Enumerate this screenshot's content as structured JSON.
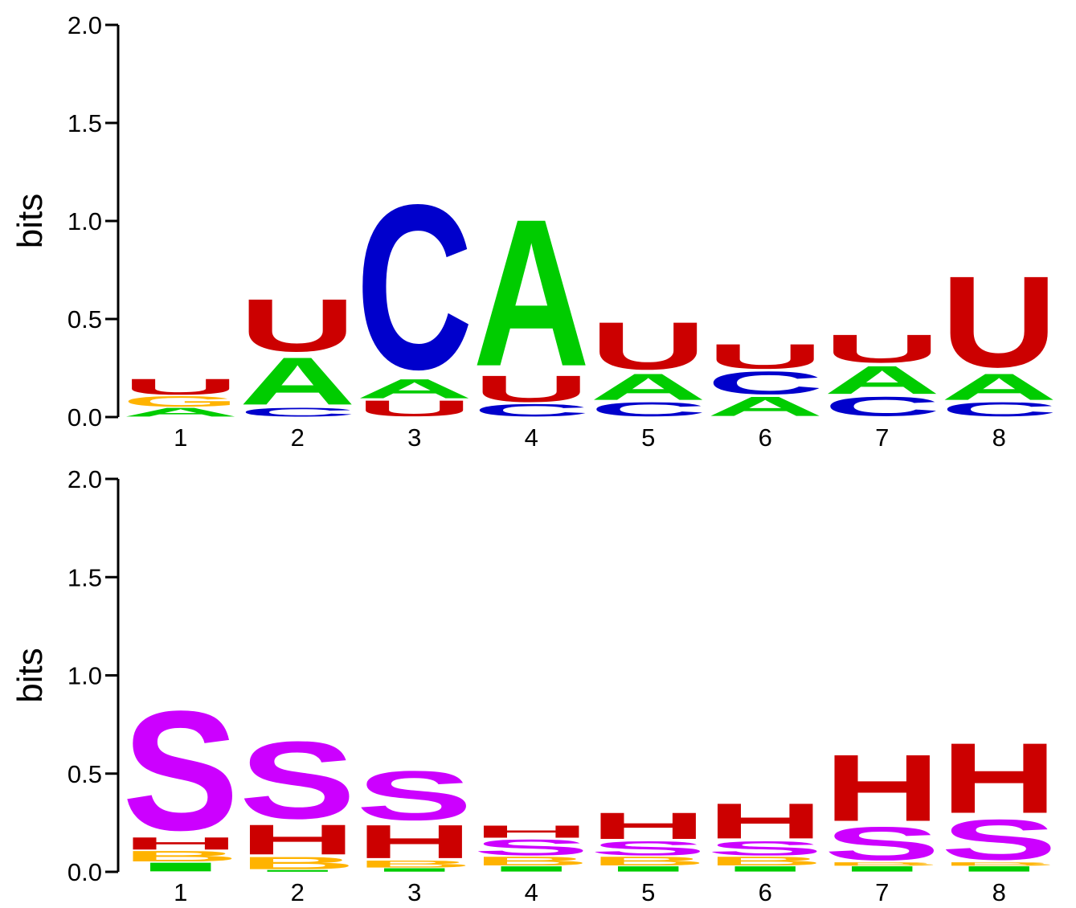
{
  "colors": {
    "A": "#00cc00",
    "C": "#0000cc",
    "G": "#ffb300",
    "U": "#cc0000",
    "H": "#cc0000",
    "S": "#cc00ff",
    "B": "#ffb300",
    "I": "#00cc00"
  },
  "chart_data": [
    {
      "type": "sequence-logo",
      "ylabel": "bits",
      "ylim": [
        0,
        2
      ],
      "yticks": [
        "0.0",
        "0.5",
        "1.0",
        "1.5",
        "2.0"
      ],
      "xticks": [
        "1",
        "2",
        "3",
        "4",
        "5",
        "6",
        "7",
        "8"
      ],
      "positions": [
        [
          {
            "letter": "A",
            "bits": 0.05
          },
          {
            "letter": "G",
            "bits": 0.06
          },
          {
            "letter": "U",
            "bits": 0.09
          }
        ],
        [
          {
            "letter": "C",
            "bits": 0.05
          },
          {
            "letter": "A",
            "bits": 0.27
          },
          {
            "letter": "U",
            "bits": 0.3
          }
        ],
        [
          {
            "letter": "U",
            "bits": 0.09
          },
          {
            "letter": "A",
            "bits": 0.11
          },
          {
            "letter": "C",
            "bits": 0.94
          }
        ],
        [
          {
            "letter": "C",
            "bits": 0.07
          },
          {
            "letter": "U",
            "bits": 0.15
          },
          {
            "letter": "A",
            "bits": 0.84
          }
        ],
        [
          {
            "letter": "C",
            "bits": 0.08
          },
          {
            "letter": "A",
            "bits": 0.15
          },
          {
            "letter": "U",
            "bits": 0.27
          }
        ],
        [
          {
            "letter": "A",
            "bits": 0.11
          },
          {
            "letter": "C",
            "bits": 0.13
          },
          {
            "letter": "U",
            "bits": 0.14
          }
        ],
        [
          {
            "letter": "C",
            "bits": 0.11
          },
          {
            "letter": "A",
            "bits": 0.16
          },
          {
            "letter": "U",
            "bits": 0.16
          }
        ],
        [
          {
            "letter": "C",
            "bits": 0.08
          },
          {
            "letter": "A",
            "bits": 0.15
          },
          {
            "letter": "U",
            "bits": 0.52
          }
        ]
      ]
    },
    {
      "type": "sequence-logo",
      "ylabel": "bits",
      "ylim": [
        0,
        2
      ],
      "yticks": [
        "0.0",
        "0.5",
        "1.0",
        "1.5",
        "2.0"
      ],
      "xticks": [
        "1",
        "2",
        "3",
        "4",
        "5",
        "6",
        "7",
        "8"
      ],
      "positions": [
        [
          {
            "letter": "I",
            "bits": 0.05
          },
          {
            "letter": "B",
            "bits": 0.06
          },
          {
            "letter": "H",
            "bits": 0.07
          },
          {
            "letter": "S",
            "bits": 0.68
          }
        ],
        [
          {
            "letter": "I",
            "bits": 0.01
          },
          {
            "letter": "B",
            "bits": 0.07
          },
          {
            "letter": "H",
            "bits": 0.17
          },
          {
            "letter": "S",
            "bits": 0.44
          }
        ],
        [
          {
            "letter": "I",
            "bits": 0.02
          },
          {
            "letter": "B",
            "bits": 0.04
          },
          {
            "letter": "H",
            "bits": 0.19
          },
          {
            "letter": "S",
            "bits": 0.28
          }
        ],
        [
          {
            "letter": "I",
            "bits": 0.03
          },
          {
            "letter": "B",
            "bits": 0.05
          },
          {
            "letter": "S",
            "bits": 0.09
          },
          {
            "letter": "H",
            "bits": 0.07
          }
        ],
        [
          {
            "letter": "I",
            "bits": 0.03
          },
          {
            "letter": "B",
            "bits": 0.05
          },
          {
            "letter": "S",
            "bits": 0.08
          },
          {
            "letter": "H",
            "bits": 0.15
          }
        ],
        [
          {
            "letter": "I",
            "bits": 0.03
          },
          {
            "letter": "B",
            "bits": 0.05
          },
          {
            "letter": "S",
            "bits": 0.08
          },
          {
            "letter": "H",
            "bits": 0.2
          }
        ],
        [
          {
            "letter": "I",
            "bits": 0.03
          },
          {
            "letter": "B",
            "bits": 0.02
          },
          {
            "letter": "S",
            "bits": 0.19
          },
          {
            "letter": "H",
            "bits": 0.38
          }
        ],
        [
          {
            "letter": "I",
            "bits": 0.03
          },
          {
            "letter": "B",
            "bits": 0.02
          },
          {
            "letter": "S",
            "bits": 0.23
          },
          {
            "letter": "H",
            "bits": 0.4
          }
        ]
      ]
    }
  ]
}
